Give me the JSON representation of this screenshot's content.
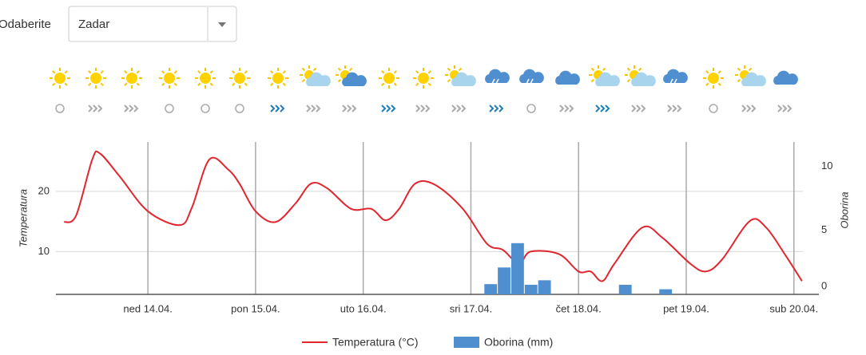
{
  "header": {
    "label": "Odaberite",
    "selected": "Zadar"
  },
  "chart_data": {
    "type": "line",
    "y_label": "Temperatura",
    "y2_label": "Oborina",
    "xlim": [
      3.5,
      170
    ],
    "xticks": [
      {
        "value": 24,
        "label": "ned 14.04."
      },
      {
        "value": 48,
        "label": "pon 15.04."
      },
      {
        "value": 72,
        "label": "uto 16.04."
      },
      {
        "value": 96,
        "label": "sri 17.04."
      },
      {
        "value": 120,
        "label": "čet 18.04."
      },
      {
        "value": 144,
        "label": "pet 19.04."
      },
      {
        "value": 168,
        "label": "sub 20.04."
      }
    ],
    "ylim": [
      2.9,
      28.2
    ],
    "yticks": [
      10,
      20
    ],
    "y2lim": [
      0,
      11.9
    ],
    "y2ticks": [
      0,
      5,
      10
    ],
    "grid": true,
    "series": [
      {
        "name": "Temperatura (°C)",
        "color": "#e0262f",
        "type": "line",
        "x": [
          5.3,
          8,
          11.6,
          13.3,
          17.8,
          24,
          31.1,
          33.8,
          37.7,
          41.8,
          44.4,
          48,
          52.4,
          56.9,
          60.4,
          64,
          69.3,
          73.8,
          77,
          80,
          83.6,
          88,
          94.2,
          99.6,
          103.1,
          106.7,
          109.3,
          115.6,
          120,
          122.7,
          125.3,
          128,
          134.2,
          138.7,
          144.9,
          148.4,
          152,
          158.2,
          161.8,
          166.2,
          169.8
        ],
        "values": [
          14.9,
          16,
          25.3,
          26.3,
          22.4,
          16.7,
          14.4,
          17.3,
          25.3,
          23.7,
          21.3,
          16.7,
          14.9,
          18,
          21.3,
          20.5,
          17.1,
          17.1,
          15.2,
          17.1,
          21.3,
          21.1,
          17.1,
          11.3,
          10.3,
          8,
          10,
          9.6,
          6.7,
          6.7,
          5.1,
          8,
          14,
          12.3,
          8,
          6.7,
          8.7,
          15.1,
          14,
          9.3,
          5.1
        ]
      },
      {
        "name": "Oborina (mm)",
        "color": "#4f8fd0",
        "type": "bar",
        "axis": "y2",
        "x": [
          100.5,
          103.5,
          106.5,
          109.5,
          112.5,
          130.5,
          139.5
        ],
        "values": [
          0.8,
          2.1,
          4,
          0.75,
          1.1,
          0.75,
          0.4
        ]
      }
    ]
  }
}
